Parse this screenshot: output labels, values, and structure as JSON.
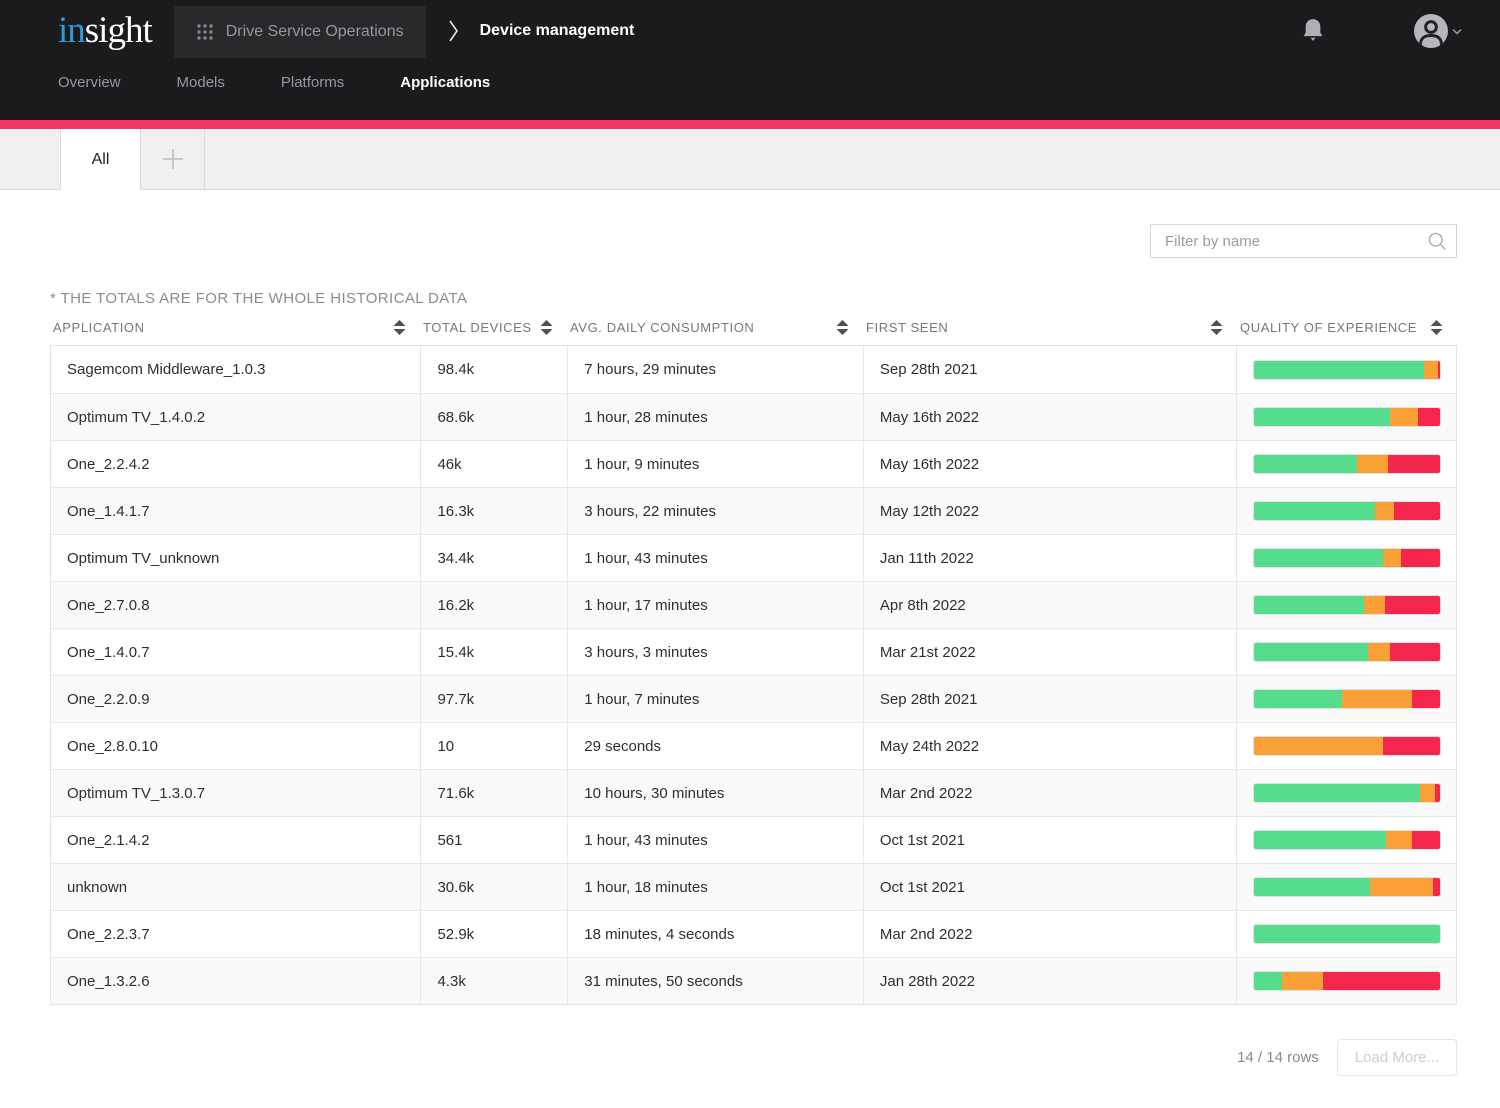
{
  "header": {
    "logo": {
      "prefix": "in",
      "suffix": "sight"
    },
    "workspace": "Drive Service Operations",
    "page_title": "Device management",
    "nav": [
      {
        "label": "Overview",
        "active": false
      },
      {
        "label": "Models",
        "active": false
      },
      {
        "label": "Platforms",
        "active": false
      },
      {
        "label": "Applications",
        "active": true
      }
    ]
  },
  "tabs": {
    "active_label": "All",
    "add_icon": "plus-icon"
  },
  "filter": {
    "placeholder": "Filter by name",
    "icon": "search-icon"
  },
  "table": {
    "note": "* THE TOTALS ARE FOR THE WHOLE HISTORICAL DATA",
    "columns": [
      "APPLICATION",
      "TOTAL DEVICES",
      "AVG. DAILY CONSUMPTION",
      "FIRST SEEN",
      "QUALITY OF EXPERIENCE"
    ],
    "rows": [
      {
        "application": "Sagemcom Middleware_1.0.3",
        "total_devices": "98.4k",
        "avg_daily_consumption": "7 hours, 29 minutes",
        "first_seen": "Sep 28th 2021",
        "qoe": {
          "good": 91,
          "fair": 8,
          "poor": 1
        }
      },
      {
        "application": "Optimum TV_1.4.0.2",
        "total_devices": "68.6k",
        "avg_daily_consumption": "1 hour, 28 minutes",
        "first_seen": "May 16th 2022",
        "qoe": {
          "good": 73,
          "fair": 15,
          "poor": 12
        }
      },
      {
        "application": "One_2.2.4.2",
        "total_devices": "46k",
        "avg_daily_consumption": "1 hour, 9 minutes",
        "first_seen": "May 16th 2022",
        "qoe": {
          "good": 55,
          "fair": 17,
          "poor": 28
        }
      },
      {
        "application": "One_1.4.1.7",
        "total_devices": "16.3k",
        "avg_daily_consumption": "3 hours, 22 minutes",
        "first_seen": "May 12th 2022",
        "qoe": {
          "good": 65,
          "fair": 10,
          "poor": 25
        }
      },
      {
        "application": "Optimum TV_unknown",
        "total_devices": "34.4k",
        "avg_daily_consumption": "1 hour, 43 minutes",
        "first_seen": "Jan 11th 2022",
        "qoe": {
          "good": 69,
          "fair": 10,
          "poor": 21
        }
      },
      {
        "application": "One_2.7.0.8",
        "total_devices": "16.2k",
        "avg_daily_consumption": "1 hour, 17 minutes",
        "first_seen": "Apr 8th 2022",
        "qoe": {
          "good": 59,
          "fair": 11,
          "poor": 30
        }
      },
      {
        "application": "One_1.4.0.7",
        "total_devices": "15.4k",
        "avg_daily_consumption": "3 hours, 3 minutes",
        "first_seen": "Mar 21st 2022",
        "qoe": {
          "good": 61,
          "fair": 12,
          "poor": 27
        }
      },
      {
        "application": "One_2.2.0.9",
        "total_devices": "97.7k",
        "avg_daily_consumption": "1 hour, 7 minutes",
        "first_seen": "Sep 28th 2021",
        "qoe": {
          "good": 47,
          "fair": 38,
          "poor": 15
        }
      },
      {
        "application": "One_2.8.0.10",
        "total_devices": "10",
        "avg_daily_consumption": "29 seconds",
        "first_seen": "May 24th 2022",
        "qoe": {
          "good": 0,
          "fair": 69,
          "poor": 31
        }
      },
      {
        "application": "Optimum TV_1.3.0.7",
        "total_devices": "71.6k",
        "avg_daily_consumption": "10 hours, 30 minutes",
        "first_seen": "Mar 2nd 2022",
        "qoe": {
          "good": 89,
          "fair": 8,
          "poor": 3
        }
      },
      {
        "application": "One_2.1.4.2",
        "total_devices": "561",
        "avg_daily_consumption": "1 hour, 43 minutes",
        "first_seen": "Oct 1st 2021",
        "qoe": {
          "good": 71,
          "fair": 14,
          "poor": 15
        }
      },
      {
        "application": "unknown",
        "total_devices": "30.6k",
        "avg_daily_consumption": "1 hour, 18 minutes",
        "first_seen": "Oct 1st 2021",
        "qoe": {
          "good": 62,
          "fair": 34,
          "poor": 4
        }
      },
      {
        "application": "One_2.2.3.7",
        "total_devices": "52.9k",
        "avg_daily_consumption": "18 minutes, 4 seconds",
        "first_seen": "Mar 2nd 2022",
        "qoe": {
          "good": 100,
          "fair": 0,
          "poor": 0
        }
      },
      {
        "application": "One_1.3.2.6",
        "total_devices": "4.3k",
        "avg_daily_consumption": "31 minutes, 50 seconds",
        "first_seen": "Jan 28th 2022",
        "qoe": {
          "good": 15,
          "fair": 22,
          "poor": 63
        }
      }
    ]
  },
  "footer": {
    "rows_label": "14 / 14 rows",
    "load_more_label": "Load More..."
  },
  "colors": {
    "accent_pink": "#f4375f",
    "qoe_good": "#55dc8c",
    "qoe_fair": "#f9a037",
    "qoe_poor": "#f4264e"
  }
}
